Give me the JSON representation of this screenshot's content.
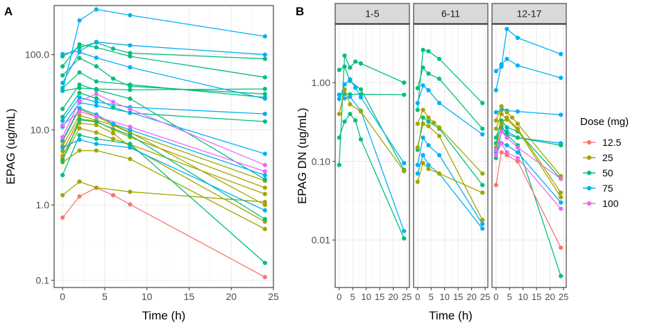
{
  "figure": {
    "panel_a_label": "A",
    "panel_b_label": "B"
  },
  "legend": {
    "title": "Dose (mg)",
    "entries": [
      {
        "label": "12.5",
        "color": "#F8766D"
      },
      {
        "label": "25",
        "color": "#A3A500"
      },
      {
        "label": "50",
        "color": "#00BF7D"
      },
      {
        "label": "75",
        "color": "#00B0F6"
      },
      {
        "label": "100",
        "color": "#E76BF3"
      }
    ]
  },
  "chart_data": [
    {
      "id": "A",
      "type": "line",
      "title": "",
      "xlabel": "Time (h)",
      "ylabel": "EPAG (ug/mL)",
      "yscale": "log10",
      "xlim": [
        -1,
        25
      ],
      "ylim": [
        0.08,
        450
      ],
      "xticks": [
        0,
        5,
        10,
        15,
        20,
        25
      ],
      "xtick_labels": [
        "0",
        "5",
        "10",
        "15",
        "20",
        "25"
      ],
      "yticks": [
        0.1,
        1,
        10,
        100
      ],
      "ytick_labels": [
        "0.1",
        "1.0",
        "10.0",
        "100.0"
      ],
      "grid": true,
      "series": [
        {
          "dose": "12.5",
          "x": [
            0,
            2,
            4,
            6,
            8,
            24
          ],
          "y": [
            0.68,
            1.3,
            1.7,
            1.35,
            1.02,
            0.11
          ]
        },
        {
          "dose": "25",
          "x": [
            0,
            2,
            4,
            8,
            24
          ],
          "y": [
            1.35,
            2.05,
            1.7,
            1.5,
            1.1
          ]
        },
        {
          "dose": "25",
          "x": [
            0,
            2,
            4,
            8,
            24
          ],
          "y": [
            3.7,
            5.3,
            5.3,
            4.1,
            0.48
          ]
        },
        {
          "dose": "25",
          "x": [
            0,
            2,
            4,
            6,
            8,
            24
          ],
          "y": [
            4.1,
            10.5,
            9.2,
            7.6,
            6.4,
            1.4
          ]
        },
        {
          "dose": "25",
          "x": [
            0,
            2,
            4,
            6,
            8,
            24
          ],
          "y": [
            4.5,
            12.3,
            11.6,
            9.0,
            6.0,
            0.6
          ]
        },
        {
          "dose": "25",
          "x": [
            0,
            2,
            4,
            6,
            8,
            24
          ],
          "y": [
            5.2,
            14.0,
            13.0,
            10.1,
            8.0,
            1.7
          ]
        },
        {
          "dose": "25",
          "x": [
            0,
            2,
            4,
            6,
            8,
            24
          ],
          "y": [
            6.1,
            15.6,
            13.4,
            11.5,
            9.1,
            2.1
          ]
        },
        {
          "dose": "25",
          "x": [
            0,
            2,
            4,
            8,
            24
          ],
          "y": [
            7.0,
            19.0,
            15.0,
            9.3,
            1.0
          ]
        },
        {
          "dose": "50",
          "x": [
            0,
            2,
            4,
            8,
            24
          ],
          "y": [
            2.5,
            8.5,
            7.6,
            6.5,
            0.17
          ]
        },
        {
          "dose": "50",
          "x": [
            0,
            2,
            4,
            8,
            24
          ],
          "y": [
            3.9,
            13.6,
            12.7,
            8.5,
            0.65
          ]
        },
        {
          "dose": "50",
          "x": [
            0,
            2,
            4,
            6,
            8,
            24
          ],
          "y": [
            14.8,
            31.0,
            26.3,
            20.0,
            16.8,
            12.9
          ]
        },
        {
          "dose": "50",
          "x": [
            0,
            2,
            4,
            8,
            24
          ],
          "y": [
            19.0,
            40.0,
            34.0,
            26.0,
            2.2
          ]
        },
        {
          "dose": "50",
          "x": [
            0,
            2,
            4,
            8,
            24
          ],
          "y": [
            33.0,
            36.0,
            35.0,
            34.0,
            35.0
          ]
        },
        {
          "dose": "50",
          "x": [
            0,
            2,
            4,
            8,
            24
          ],
          "y": [
            36.0,
            58.0,
            44.0,
            40.0,
            27.0
          ]
        },
        {
          "dose": "50",
          "x": [
            0,
            2,
            4,
            6,
            8,
            24
          ],
          "y": [
            53.0,
            90.0,
            70.0,
            48.0,
            38.0,
            30.0
          ]
        },
        {
          "dose": "50",
          "x": [
            0,
            2,
            4,
            8,
            24
          ],
          "y": [
            70.0,
            137.0,
            125.0,
            95.0,
            50.0
          ]
        },
        {
          "dose": "50",
          "x": [
            0,
            2,
            4,
            6,
            8,
            24
          ],
          "y": [
            95.0,
            125.0,
            145.0,
            120.0,
            105.0,
            88.0
          ]
        },
        {
          "dose": "75",
          "x": [
            0,
            2,
            4,
            8,
            24
          ],
          "y": [
            5.8,
            7.4,
            6.5,
            5.8,
            0.85
          ]
        },
        {
          "dose": "75",
          "x": [
            0,
            2,
            4,
            6,
            8,
            24
          ],
          "y": [
            7.3,
            19.5,
            16.0,
            12.0,
            10.0,
            2.5
          ]
        },
        {
          "dose": "75",
          "x": [
            0,
            2,
            4,
            8,
            24
          ],
          "y": [
            11.0,
            23.0,
            21.0,
            17.0,
            4.8
          ]
        },
        {
          "dose": "75",
          "x": [
            0,
            2,
            4,
            8,
            24
          ],
          "y": [
            13.2,
            27.0,
            23.5,
            20.0,
            16.3
          ]
        },
        {
          "dose": "75",
          "x": [
            0,
            2,
            4,
            8,
            24
          ],
          "y": [
            42.0,
            108.0,
            91.0,
            68.0,
            26.0
          ]
        },
        {
          "dose": "75",
          "x": [
            0,
            2,
            4,
            8,
            24
          ],
          "y": [
            102.0,
            112.0,
            148.0,
            133.0,
            100.0
          ]
        },
        {
          "dose": "75",
          "x": [
            0,
            2,
            4,
            8,
            24
          ],
          "y": [
            33.0,
            285.0,
            400.0,
            335.0,
            175.0
          ]
        },
        {
          "dose": "100",
          "x": [
            0,
            2,
            4,
            6,
            8,
            24
          ],
          "y": [
            8.0,
            24.0,
            30.0,
            23.5,
            19.0,
            3.4
          ]
        },
        {
          "dose": "100",
          "x": [
            0,
            2,
            4,
            8,
            24
          ],
          "y": [
            11.5,
            17.5,
            15.0,
            11.0,
            2.8
          ]
        }
      ]
    },
    {
      "id": "B",
      "type": "line",
      "title": "",
      "xlabel": "Time (h)",
      "ylabel": "EPAG DN (ug/mL)",
      "yscale": "log10",
      "xlim": [
        -1.5,
        26
      ],
      "ylim": [
        0.0025,
        5.5
      ],
      "xticks": [
        0,
        5,
        10,
        15,
        20,
        25
      ],
      "xtick_labels": [
        "0",
        "5",
        "10",
        "15",
        "20",
        "25"
      ],
      "yticks": [
        0.01,
        0.1,
        1
      ],
      "ytick_labels": [
        "0.01",
        "0.10",
        "1.00"
      ],
      "grid": true,
      "facets": [
        {
          "label": "1-5",
          "series": [
            {
              "dose": "50",
              "x": [
                0,
                2,
                4,
                6,
                8,
                24
              ],
              "y": [
                0.09,
                2.2,
                1.55,
                1.85,
                1.75,
                1.0
              ]
            },
            {
              "dose": "50",
              "x": [
                0,
                2,
                4,
                6,
                8,
                24
              ],
              "y": [
                0.2,
                0.32,
                0.4,
                0.33,
                0.19,
                0.0105
              ]
            },
            {
              "dose": "50",
              "x": [
                0,
                2,
                4,
                8,
                24
              ],
              "y": [
                0.7,
                0.72,
                0.71,
                0.71,
                0.7
              ]
            },
            {
              "dose": "50",
              "x": [
                0,
                2,
                4,
                8,
                24
              ],
              "y": [
                1.45,
                1.6,
                1.05,
                0.82,
                0.078
              ]
            },
            {
              "dose": "75",
              "x": [
                0,
                2,
                4,
                6,
                8,
                24
              ],
              "y": [
                0.62,
                0.95,
                1.1,
                0.86,
                0.65,
                0.095
              ]
            },
            {
              "dose": "75",
              "x": [
                0,
                2,
                4,
                8,
                24
              ],
              "y": [
                0.7,
                0.63,
                0.66,
                0.44,
                0.013
              ]
            },
            {
              "dose": "25",
              "x": [
                0,
                2,
                4,
                8,
                24
              ],
              "y": [
                0.4,
                0.82,
                0.53,
                0.43,
                0.075
              ]
            }
          ]
        },
        {
          "label": "6-11",
          "series": [
            {
              "dose": "50",
              "x": [
                0,
                2,
                4,
                8,
                24
              ],
              "y": [
                0.45,
                2.6,
                2.5,
                2.0,
                0.55
              ]
            },
            {
              "dose": "50",
              "x": [
                0,
                2,
                4,
                8,
                24
              ],
              "y": [
                0.85,
                1.55,
                1.3,
                1.12,
                0.26
              ]
            },
            {
              "dose": "50",
              "x": [
                0,
                2,
                4,
                8,
                24
              ],
              "y": [
                0.14,
                0.36,
                0.32,
                0.26,
                0.05
              ]
            },
            {
              "dose": "75",
              "x": [
                0,
                2,
                4,
                8,
                24
              ],
              "y": [
                0.55,
                0.92,
                0.8,
                0.55,
                0.22
              ]
            },
            {
              "dose": "75",
              "x": [
                0,
                2,
                4,
                8,
                24
              ],
              "y": [
                0.09,
                0.2,
                0.16,
                0.12,
                0.016
              ]
            },
            {
              "dose": "75",
              "x": [
                0,
                2,
                4,
                8,
                24
              ],
              "y": [
                0.07,
                0.12,
                0.09,
                0.07,
                0.014
              ]
            },
            {
              "dose": "25",
              "x": [
                0,
                2,
                4,
                8,
                24
              ],
              "y": [
                0.055,
                0.095,
                0.08,
                0.07,
                0.04
              ]
            },
            {
              "dose": "25",
              "x": [
                0,
                2,
                4,
                6,
                8,
                24
              ],
              "y": [
                0.3,
                0.45,
                0.36,
                0.31,
                0.27,
                0.07
              ]
            },
            {
              "dose": "25",
              "x": [
                0,
                2,
                4,
                8,
                24
              ],
              "y": [
                0.15,
                0.3,
                0.28,
                0.21,
                0.018
              ]
            }
          ]
        },
        {
          "label": "12-17",
          "series": [
            {
              "dose": "75",
              "x": [
                0,
                2,
                4,
                8,
                24
              ],
              "y": [
                1.4,
                1.6,
                4.8,
                3.7,
                2.3
              ]
            },
            {
              "dose": "75",
              "x": [
                0,
                2,
                4,
                8,
                24
              ],
              "y": [
                0.8,
                1.7,
                2.0,
                1.65,
                1.15
              ]
            },
            {
              "dose": "75",
              "x": [
                0,
                2,
                4,
                8,
                24
              ],
              "y": [
                0.42,
                0.45,
                0.44,
                0.43,
                0.39
              ]
            },
            {
              "dose": "75",
              "x": [
                0,
                2,
                4,
                8,
                24
              ],
              "y": [
                0.2,
                0.26,
                0.24,
                0.2,
                0.17
              ]
            },
            {
              "dose": "75",
              "x": [
                0,
                2,
                4,
                8,
                24
              ],
              "y": [
                0.13,
                0.17,
                0.16,
                0.13,
                0.03
              ]
            },
            {
              "dose": "50",
              "x": [
                0,
                2,
                4,
                8,
                24
              ],
              "y": [
                0.11,
                0.24,
                0.22,
                0.16,
                0.0035
              ]
            },
            {
              "dose": "50",
              "x": [
                0,
                2,
                4,
                8,
                24
              ],
              "y": [
                0.17,
                0.28,
                0.22,
                0.2,
                0.16
              ]
            },
            {
              "dose": "50",
              "x": [
                0,
                2,
                4,
                8,
                24
              ],
              "y": [
                0.2,
                0.33,
                0.27,
                0.24,
                0.06
              ]
            },
            {
              "dose": "25",
              "x": [
                0,
                2,
                4,
                6,
                8,
                24
              ],
              "y": [
                0.33,
                0.5,
                0.42,
                0.36,
                0.3,
                0.065
              ]
            },
            {
              "dose": "25",
              "x": [
                0,
                2,
                4,
                8,
                24
              ],
              "y": [
                0.15,
                0.3,
                0.36,
                0.26,
                0.04
              ]
            },
            {
              "dose": "25",
              "x": [
                0,
                2,
                4,
                8,
                24
              ],
              "y": [
                0.26,
                0.4,
                0.34,
                0.25,
                0.035
              ]
            },
            {
              "dose": "12.5",
              "x": [
                0,
                2,
                4,
                8,
                24
              ],
              "y": [
                0.05,
                0.13,
                0.12,
                0.1,
                0.008
              ]
            },
            {
              "dose": "100",
              "x": [
                0,
                2,
                4,
                8,
                24
              ],
              "y": [
                0.12,
                0.17,
                0.13,
                0.11,
                0.025
              ]
            },
            {
              "dose": "100",
              "x": [
                0,
                2,
                4,
                8,
                24
              ],
              "y": [
                0.14,
                0.24,
                0.2,
                0.15,
                0.06
              ]
            }
          ]
        }
      ]
    }
  ]
}
